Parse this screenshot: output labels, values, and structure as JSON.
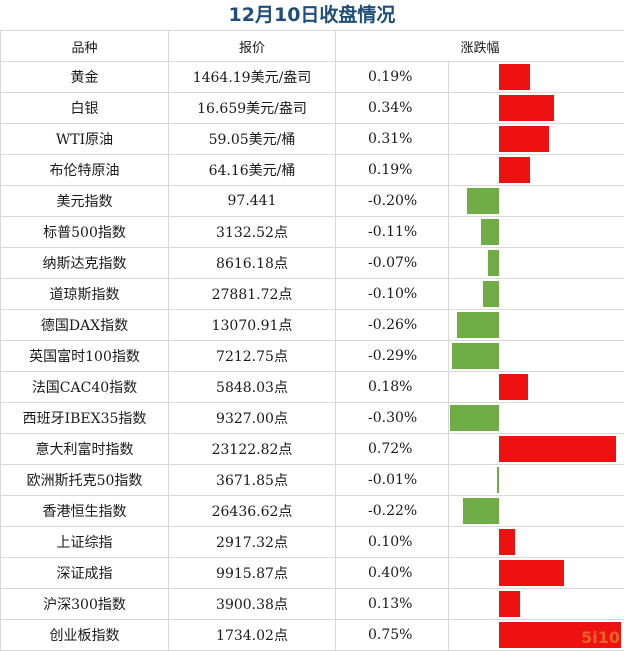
{
  "title": "12月10日收盘情况",
  "headers": {
    "name": "品种",
    "price": "报价",
    "change": "涨跌幅"
  },
  "colors": {
    "positive": "#ee1111",
    "negative": "#70ad47",
    "title": "#1f4e79"
  },
  "watermark": "5i10",
  "chart_data": {
    "type": "bar",
    "categories": [
      "黄金",
      "白银",
      "WTI原油",
      "布伦特原油",
      "美元指数",
      "标普500指数",
      "纳斯达克指数",
      "道琼斯指数",
      "德国DAX指数",
      "英国富时100指数",
      "法国CAC40指数",
      "西班牙IBEX35指数",
      "意大利富时指数",
      "欧洲斯托克50指数",
      "香港恒生指数",
      "上证综指",
      "深证成指",
      "沪深300指数",
      "创业板指数"
    ],
    "prices": [
      "1464.19美元/盎司",
      "16.659美元/盎司",
      "59.05美元/桶",
      "64.16美元/桶",
      "97.441",
      "3132.52点",
      "8616.18点",
      "27881.72点",
      "13070.91点",
      "7212.75点",
      "5848.03点",
      "9327.00点",
      "23122.82点",
      "3671.85点",
      "26436.62点",
      "2917.32点",
      "9915.87点",
      "3900.38点",
      "1734.02点"
    ],
    "change_labels": [
      "0.19%",
      "0.34%",
      "0.31%",
      "0.19%",
      "-0.20%",
      "-0.11%",
      "-0.07%",
      "-0.10%",
      "-0.26%",
      "-0.29%",
      "0.18%",
      "-0.30%",
      "0.72%",
      "-0.01%",
      "-0.22%",
      "0.10%",
      "0.40%",
      "0.13%",
      "0.75%"
    ],
    "values": [
      0.19,
      0.34,
      0.31,
      0.19,
      -0.2,
      -0.11,
      -0.07,
      -0.1,
      -0.26,
      -0.29,
      0.18,
      -0.3,
      0.72,
      -0.01,
      -0.22,
      0.1,
      0.4,
      0.13,
      0.75
    ]
  }
}
